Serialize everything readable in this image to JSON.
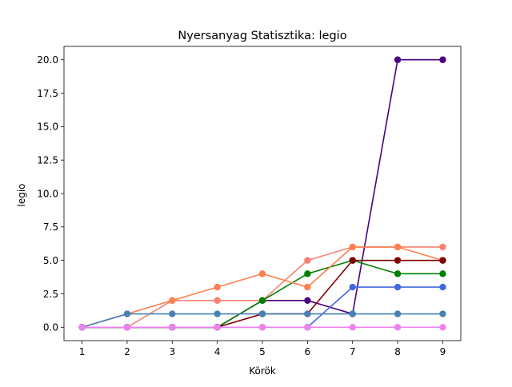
{
  "chart_data": {
    "type": "line",
    "title": "Nyersanyag Statisztika: legio",
    "xlabel": "Körök",
    "ylabel": "legio",
    "x": [
      1,
      2,
      3,
      4,
      5,
      6,
      7,
      8,
      9
    ],
    "xlim": [
      0.6,
      9.4
    ],
    "ylim": [
      -1.0,
      21.0
    ],
    "xticks": [
      1,
      2,
      3,
      4,
      5,
      6,
      7,
      8,
      9
    ],
    "yticks": [
      "0.0",
      "2.5",
      "5.0",
      "7.5",
      "10.0",
      "12.5",
      "15.0",
      "17.5",
      "20.0"
    ],
    "grid": false,
    "legend": "none",
    "series": [
      {
        "color": "#4B0082",
        "values": [
          0,
          0,
          0,
          0,
          2,
          2,
          1,
          20,
          20
        ]
      },
      {
        "color": "#FA8072",
        "values": [
          0,
          0,
          2,
          2,
          2,
          5,
          6,
          6,
          6
        ]
      },
      {
        "color": "#008000",
        "values": [
          0,
          0,
          0,
          0,
          2,
          4,
          5,
          4,
          4
        ]
      },
      {
        "color": "#FF7F50",
        "values": [
          0,
          1,
          2,
          3,
          4,
          3,
          6,
          6,
          5
        ]
      },
      {
        "color": "#800000",
        "values": [
          0,
          0,
          0,
          0,
          1,
          1,
          5,
          5,
          5
        ]
      },
      {
        "color": "#4169E1",
        "values": [
          0,
          0,
          0,
          0,
          0,
          0,
          3,
          3,
          3
        ]
      },
      {
        "color": "#4682B4",
        "values": [
          0,
          1,
          1,
          1,
          1,
          1,
          1,
          1,
          1
        ]
      },
      {
        "color": "#EE82EE",
        "values": [
          0,
          0,
          0,
          0,
          0,
          0,
          0,
          0,
          0
        ]
      }
    ]
  }
}
